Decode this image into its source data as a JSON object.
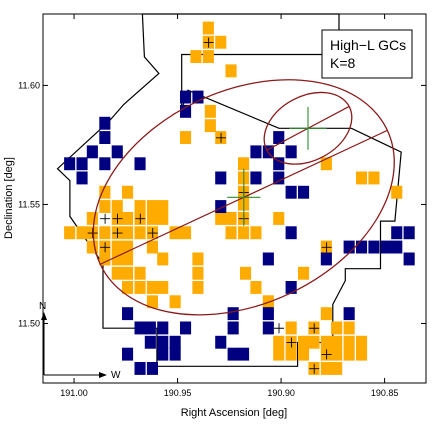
{
  "chart_data": {
    "type": "heatmap",
    "title": "",
    "legend_text": [
      "High−L GCs",
      "K=8"
    ],
    "legend_position": "top-right",
    "xlabel": "Right Ascension [deg]",
    "ylabel": "Declination [deg]",
    "xlim": [
      191.015,
      190.83
    ],
    "ylim": [
      11.475,
      11.63
    ],
    "xticks": [
      191.0,
      190.95,
      190.9,
      190.85
    ],
    "xtick_labels": [
      "191.00",
      "190.95",
      "190.90",
      "190.85"
    ],
    "yticks": [
      11.5,
      11.55,
      11.6
    ],
    "ytick_labels": [
      "11.50",
      "11.55",
      "11.60"
    ],
    "grid": false,
    "compass": {
      "north": "N",
      "west": "W"
    },
    "colors": {
      "orange": "#ffab00",
      "navy": "#000080",
      "ellipse": "#8b1a1a",
      "cross": "#2e8b2e",
      "outline": "#000000"
    },
    "cell_size_deg": 0.00565,
    "footprint": [
      [
        190.967,
        11.63
      ],
      [
        190.872,
        11.63
      ],
      [
        190.872,
        11.613
      ],
      [
        190.948,
        11.613
      ],
      [
        190.948,
        11.59
      ],
      [
        190.945,
        11.598
      ],
      [
        190.901,
        11.582
      ],
      [
        190.866,
        11.582
      ],
      [
        190.842,
        11.572
      ],
      [
        190.845,
        11.543
      ],
      [
        190.852,
        11.543
      ],
      [
        190.852,
        11.523
      ],
      [
        190.869,
        11.523
      ],
      [
        190.869,
        11.518
      ],
      [
        190.875,
        11.508
      ],
      [
        190.875,
        11.492
      ],
      [
        190.892,
        11.492
      ],
      [
        190.892,
        11.482
      ],
      [
        190.96,
        11.482
      ],
      [
        190.96,
        11.498
      ],
      [
        190.986,
        11.498
      ],
      [
        190.986,
        11.525
      ],
      [
        191.002,
        11.545
      ],
      [
        191.002,
        11.56
      ],
      [
        191.008,
        11.565
      ],
      [
        190.983,
        11.585
      ],
      [
        190.976,
        11.592
      ],
      [
        190.959,
        11.605
      ],
      [
        190.966,
        11.612
      ]
    ],
    "ellipses": [
      {
        "name": "big",
        "center": [
          190.918,
          11.553
        ],
        "semi_major": 0.0765,
        "semi_minor": 0.0515,
        "angle_deg": 25
      },
      {
        "name": "small",
        "center": [
          190.887,
          11.582
        ],
        "semi_major": 0.0225,
        "semi_minor": 0.0155,
        "angle_deg": 28
      }
    ],
    "crosses": [
      {
        "center": [
          190.918,
          11.553
        ],
        "dx": 0.008,
        "dy": 0.012
      },
      {
        "center": [
          190.887,
          11.582
        ],
        "dx": 0.009,
        "dy": 0.009
      }
    ],
    "series": [
      {
        "name": "orange",
        "color": "#ffab00",
        "points": [
          [
            190.935,
            11.624
          ],
          [
            190.935,
            11.618
          ],
          [
            190.929,
            11.618
          ],
          [
            190.941,
            11.612
          ],
          [
            190.935,
            11.612
          ],
          [
            190.924,
            11.606
          ],
          [
            190.934,
            11.589
          ],
          [
            190.934,
            11.583
          ],
          [
            190.946,
            11.578
          ],
          [
            190.929,
            11.578
          ],
          [
            190.918,
            11.567
          ],
          [
            190.918,
            11.561
          ],
          [
            190.918,
            11.555
          ],
          [
            190.918,
            11.55
          ],
          [
            190.918,
            11.544
          ],
          [
            190.918,
            11.538
          ],
          [
            190.924,
            11.544
          ],
          [
            190.924,
            11.538
          ],
          [
            190.929,
            11.544
          ],
          [
            190.985,
            11.549
          ],
          [
            190.985,
            11.555
          ],
          [
            190.979,
            11.549
          ],
          [
            190.979,
            11.544
          ],
          [
            190.974,
            11.544
          ],
          [
            190.968,
            11.544
          ],
          [
            190.962,
            11.544
          ],
          [
            190.957,
            11.544
          ],
          [
            190.968,
            11.549
          ],
          [
            190.962,
            11.549
          ],
          [
            190.957,
            11.549
          ],
          [
            190.974,
            11.555
          ],
          [
            190.991,
            11.544
          ],
          [
            190.996,
            11.538
          ],
          [
            191.002,
            11.538
          ],
          [
            190.991,
            11.538
          ],
          [
            190.985,
            11.538
          ],
          [
            190.979,
            11.538
          ],
          [
            190.974,
            11.538
          ],
          [
            190.968,
            11.538
          ],
          [
            190.962,
            11.538
          ],
          [
            190.951,
            11.538
          ],
          [
            190.946,
            11.538
          ],
          [
            190.991,
            11.532
          ],
          [
            190.985,
            11.532
          ],
          [
            190.979,
            11.532
          ],
          [
            190.974,
            11.532
          ],
          [
            190.962,
            11.532
          ],
          [
            190.985,
            11.527
          ],
          [
            190.979,
            11.527
          ],
          [
            190.974,
            11.527
          ],
          [
            190.957,
            11.527
          ],
          [
            190.94,
            11.527
          ],
          [
            190.979,
            11.521
          ],
          [
            190.974,
            11.521
          ],
          [
            190.968,
            11.521
          ],
          [
            190.94,
            11.521
          ],
          [
            190.974,
            11.515
          ],
          [
            190.968,
            11.515
          ],
          [
            190.962,
            11.515
          ],
          [
            190.957,
            11.515
          ],
          [
            190.94,
            11.515
          ],
          [
            190.962,
            11.509
          ],
          [
            190.951,
            11.509
          ],
          [
            190.878,
            11.567
          ],
          [
            190.855,
            11.561
          ],
          [
            190.861,
            11.561
          ],
          [
            190.844,
            11.555
          ],
          [
            190.901,
            11.544
          ],
          [
            190.912,
            11.538
          ],
          [
            190.878,
            11.532
          ],
          [
            190.889,
            11.521
          ],
          [
            190.917,
            11.521
          ],
          [
            190.912,
            11.515
          ],
          [
            190.906,
            11.509
          ],
          [
            190.878,
            11.504
          ],
          [
            190.895,
            11.498
          ],
          [
            190.884,
            11.498
          ],
          [
            190.873,
            11.498
          ],
          [
            190.867,
            11.498
          ],
          [
            190.901,
            11.492
          ],
          [
            190.895,
            11.492
          ],
          [
            190.889,
            11.492
          ],
          [
            190.884,
            11.492
          ],
          [
            190.878,
            11.492
          ],
          [
            190.873,
            11.492
          ],
          [
            190.867,
            11.492
          ],
          [
            190.861,
            11.492
          ],
          [
            190.901,
            11.487
          ],
          [
            190.895,
            11.487
          ],
          [
            190.889,
            11.487
          ],
          [
            190.878,
            11.487
          ],
          [
            190.873,
            11.487
          ],
          [
            190.867,
            11.487
          ],
          [
            190.861,
            11.487
          ],
          [
            190.884,
            11.481
          ],
          [
            190.878,
            11.481
          ],
          [
            190.873,
            11.481
          ]
        ]
      },
      {
        "name": "navy",
        "color": "#000080",
        "points": [
          [
            190.946,
            11.595
          ],
          [
            190.94,
            11.595
          ],
          [
            190.946,
            11.589
          ],
          [
            190.985,
            11.584
          ],
          [
            190.985,
            11.578
          ],
          [
            190.991,
            11.572
          ],
          [
            190.996,
            11.567
          ],
          [
            191.002,
            11.567
          ],
          [
            190.996,
            11.561
          ],
          [
            190.979,
            11.572
          ],
          [
            190.985,
            11.567
          ],
          [
            190.968,
            11.567
          ],
          [
            190.901,
            11.578
          ],
          [
            190.912,
            11.572
          ],
          [
            190.906,
            11.572
          ],
          [
            190.895,
            11.572
          ],
          [
            190.901,
            11.567
          ],
          [
            190.912,
            11.561
          ],
          [
            190.929,
            11.561
          ],
          [
            190.929,
            11.549
          ],
          [
            190.901,
            11.561
          ],
          [
            190.895,
            11.555
          ],
          [
            190.889,
            11.555
          ],
          [
            190.895,
            11.538
          ],
          [
            190.906,
            11.527
          ],
          [
            190.867,
            11.532
          ],
          [
            190.867,
            11.504
          ],
          [
            190.923,
            11.504
          ],
          [
            190.906,
            11.498
          ],
          [
            190.906,
            11.504
          ],
          [
            190.923,
            11.498
          ],
          [
            190.929,
            11.492
          ],
          [
            190.923,
            11.487
          ],
          [
            190.918,
            11.487
          ],
          [
            190.878,
            11.527
          ],
          [
            190.895,
            11.515
          ],
          [
            190.861,
            11.532
          ],
          [
            190.855,
            11.532
          ],
          [
            190.849,
            11.532
          ],
          [
            190.844,
            11.538
          ],
          [
            190.838,
            11.538
          ],
          [
            190.844,
            11.532
          ],
          [
            190.838,
            11.527
          ],
          [
            190.974,
            11.504
          ],
          [
            190.968,
            11.498
          ],
          [
            190.963,
            11.498
          ],
          [
            190.957,
            11.492
          ],
          [
            190.951,
            11.492
          ],
          [
            190.946,
            11.498
          ],
          [
            190.957,
            11.498
          ],
          [
            190.963,
            11.492
          ],
          [
            190.957,
            11.487
          ],
          [
            190.951,
            11.487
          ],
          [
            190.974,
            11.487
          ],
          [
            190.968,
            11.481
          ],
          [
            190.962,
            11.481
          ]
        ]
      }
    ],
    "plus_markers": [
      [
        190.935,
        11.618
      ],
      [
        190.929,
        11.578
      ],
      [
        190.918,
        11.555
      ],
      [
        190.918,
        11.544
      ],
      [
        190.985,
        11.544
      ],
      [
        190.979,
        11.544
      ],
      [
        190.991,
        11.538
      ],
      [
        190.979,
        11.538
      ],
      [
        190.968,
        11.544
      ],
      [
        190.962,
        11.538
      ],
      [
        190.985,
        11.532
      ],
      [
        190.901,
        11.498
      ],
      [
        190.895,
        11.492
      ],
      [
        190.884,
        11.498
      ],
      [
        190.878,
        11.487
      ],
      [
        190.884,
        11.481
      ],
      [
        190.878,
        11.532
      ]
    ]
  }
}
